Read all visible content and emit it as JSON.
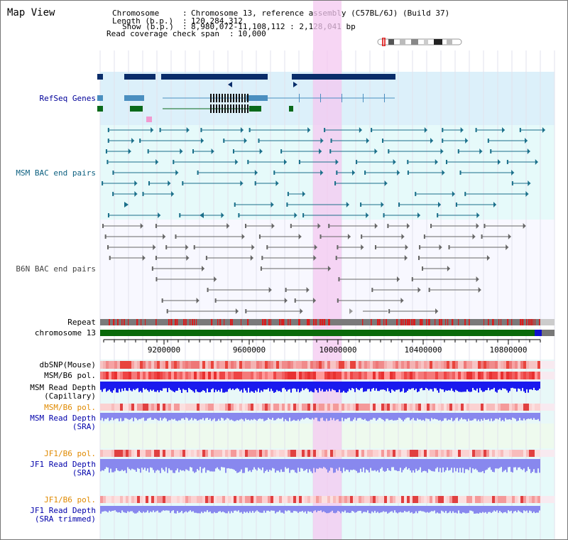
{
  "view": {
    "title": "Map View"
  },
  "header": {
    "chromosome_label": "Chromosome",
    "chromosome_value": "Chromosome 13, reference assembly (C57BL/6J) (Build 37)",
    "length_label": "Length (b.p.)",
    "length_value": "120,284,312",
    "show_label": "Show (b.p.)",
    "show_value": "8,980,072-11,108,112 : 2,128,041 bp",
    "coverage_label": "Read coverage check span",
    "coverage_value": "10,000"
  },
  "tracks": {
    "refseq": "RefSeq Genes",
    "msm_bac": "MSM BAC end pairs",
    "b6n_bac": "B6N BAC end pairs",
    "repeat": "Repeat",
    "chromosome": "chromosome 13",
    "dbsnp": "dbSNP(Mouse)",
    "msm_b6_pol_1": "MSM/B6 pol.",
    "msm_depth_cap_1": "MSM Read Depth",
    "msm_depth_cap_2": "(Capillary)",
    "msm_b6_pol_2": "MSM/B6 pol.",
    "msm_depth_sra_1": "MSM Read Depth",
    "msm_depth_sra_2": "(SRA)",
    "jf1_b6_pol_1": "JF1/B6 pol.",
    "jf1_depth_sra_1": "JF1 Read Depth",
    "jf1_depth_sra_2": "(SRA)",
    "jf1_b6_pol_2": "JF1/B6 pol.",
    "jf1_depth_trim_1": "JF1 Read Depth",
    "jf1_depth_trim_2": "(SRA trimmed)"
  },
  "axis": {
    "ticks": [
      "9200000",
      "9600000",
      "10000000",
      "10400000",
      "10800000"
    ]
  },
  "colors": {
    "highlight": "#f4c8f0",
    "gene_dark": "#0a2d6a",
    "gene_mid": "#4a8fc0",
    "gene_green": "#0a6a1a",
    "bac_teal": "#1a6f8a",
    "bac_grey": "#666666",
    "chrom_green": "#0a6a0a",
    "snp_red": "#e8443c",
    "depth_blue": "#1a1aee",
    "depth_light": "#8888ee"
  }
}
